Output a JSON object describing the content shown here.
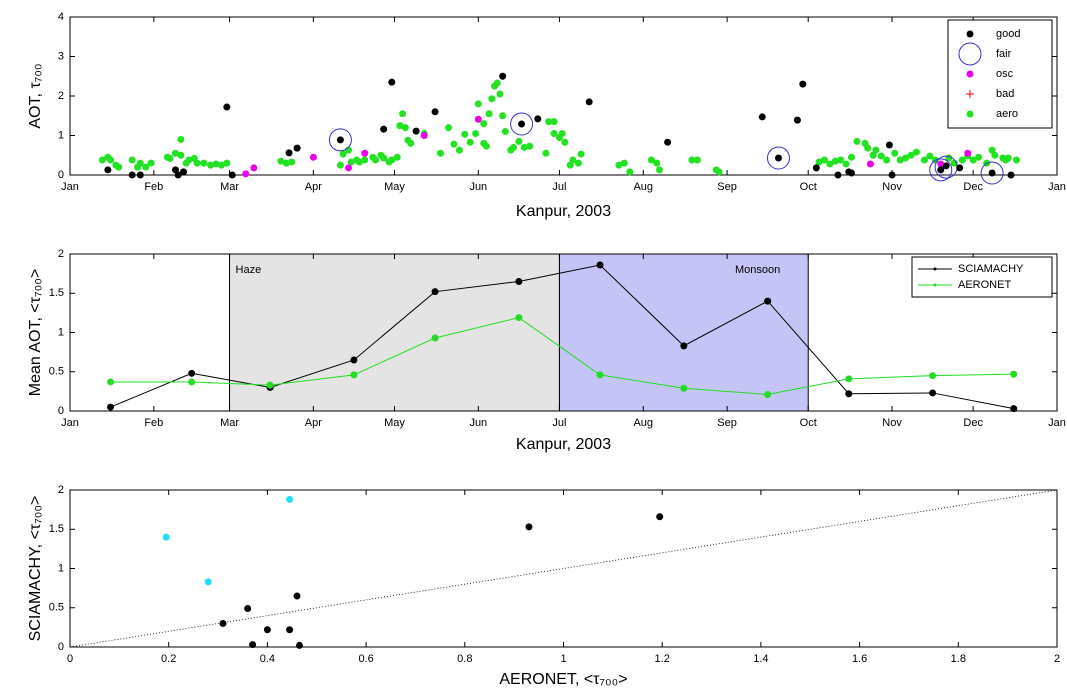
{
  "chart_data": [
    {
      "type": "scatter",
      "x_label": "Kanpur, 2003",
      "y_label": "AOT, τ₇₀₀",
      "xlim": [
        0,
        365
      ],
      "xticks": [
        {
          "value": 0,
          "label": "Jan"
        },
        {
          "value": 31,
          "label": "Feb"
        },
        {
          "value": 59,
          "label": "Mar"
        },
        {
          "value": 90,
          "label": "Apr"
        },
        {
          "value": 120,
          "label": "May"
        },
        {
          "value": 151,
          "label": "Jun"
        },
        {
          "value": 181,
          "label": "Jul"
        },
        {
          "value": 212,
          "label": "Aug"
        },
        {
          "value": 243,
          "label": "Sep"
        },
        {
          "value": 273,
          "label": "Oct"
        },
        {
          "value": 304,
          "label": "Nov"
        },
        {
          "value": 334,
          "label": "Dec"
        },
        {
          "value": 365,
          "label": "Jan"
        }
      ],
      "ylim": [
        0,
        4
      ],
      "yticks": [
        0,
        1,
        2,
        3,
        4
      ],
      "legend": "upper right",
      "series": [
        {
          "name": "good",
          "color": "#000000",
          "marker": "dot",
          "x": [
            14,
            23,
            26,
            39,
            40,
            42,
            58,
            60,
            81,
            84,
            100,
            116,
            119,
            128,
            135,
            160,
            167,
            173,
            192,
            221,
            256,
            262,
            269,
            271,
            276,
            284,
            288,
            289,
            303,
            304,
            322,
            324,
            329,
            341,
            348
          ],
          "values": [
            0.13,
            0,
            0,
            0.13,
            0,
            0.08,
            1.72,
            0,
            0.56,
            0.68,
            0.89,
            1.16,
            2.35,
            1.11,
            1.6,
            2.5,
            1.29,
            1.42,
            1.85,
            0.83,
            1.47,
            0.43,
            1.39,
            2.3,
            0.18,
            0,
            0.08,
            0.05,
            0.76,
            0,
            0.13,
            0.23,
            0.18,
            0.05,
            0
          ]
        },
        {
          "name": "fair",
          "color": "#3333cc",
          "marker": "circle",
          "x": [
            100,
            167,
            262,
            322,
            324,
            341
          ],
          "values": [
            0.89,
            1.29,
            0.43,
            0.13,
            0.2,
            0.05
          ]
        },
        {
          "name": "osc",
          "color": "#ee00ee",
          "marker": "dot",
          "x": [
            65,
            68,
            90,
            103,
            109,
            131,
            151,
            296,
            322,
            332
          ],
          "values": [
            0.03,
            0.18,
            0.45,
            0.18,
            0.55,
            1.0,
            1.41,
            0.28,
            0.28,
            0.55
          ]
        },
        {
          "name": "bad",
          "color": "#ff0000",
          "marker": "plus",
          "x": [],
          "values": []
        },
        {
          "name": "aero",
          "color": "#22e322",
          "marker": "dot",
          "x": [
            12,
            14,
            15,
            17,
            18,
            23,
            25,
            26,
            28,
            30,
            36,
            37,
            39,
            41,
            41,
            43,
            44,
            46,
            47,
            49.5,
            52,
            54,
            56,
            58,
            78,
            80,
            82,
            100,
            101,
            103,
            104,
            106,
            107,
            109,
            112,
            113,
            115,
            116,
            118,
            119,
            121,
            122,
            124,
            125,
            126,
            123,
            131,
            137,
            140,
            142,
            144,
            146,
            148,
            150,
            151,
            153,
            153,
            154,
            155,
            156,
            157,
            158,
            159,
            160,
            161,
            163,
            164,
            166,
            168,
            170,
            176,
            177,
            179,
            179,
            181,
            182,
            183,
            185,
            186,
            188,
            189,
            203,
            205,
            207,
            215,
            217,
            218,
            230,
            232,
            239,
            240,
            277,
            279,
            281,
            283,
            285,
            287,
            289,
            291,
            294,
            295,
            297,
            298,
            300,
            302,
            305,
            307,
            309,
            311,
            313,
            316,
            318,
            320,
            325,
            327,
            330,
            332,
            334,
            336,
            339,
            341,
            342,
            345,
            346,
            347,
            350
          ],
          "values": [
            0.38,
            0.45,
            0.38,
            0.25,
            0.2,
            0.38,
            0.2,
            0.3,
            0.2,
            0.3,
            0.45,
            0.42,
            0.55,
            0.9,
            0.5,
            0.3,
            0.38,
            0.42,
            0.3,
            0.3,
            0.25,
            0.28,
            0.25,
            0.3,
            0.35,
            0.3,
            0.33,
            0.25,
            0.53,
            0.63,
            0.33,
            0.38,
            0.33,
            0.38,
            0.45,
            0.38,
            0.5,
            0.43,
            0.33,
            0.38,
            0.45,
            1.25,
            1.2,
            0.88,
            0.8,
            1.55,
            1.05,
            0.55,
            1.2,
            0.78,
            0.63,
            1.03,
            0.83,
            1.05,
            1.8,
            1.3,
            0.8,
            0.73,
            1.55,
            1.93,
            2.25,
            2.33,
            2.05,
            1.5,
            1.1,
            0.63,
            0.7,
            0.85,
            0.7,
            0.73,
            0.55,
            1.35,
            1.35,
            1.05,
            0.95,
            1.05,
            0.83,
            0.25,
            0.38,
            0.3,
            0.53,
            0.25,
            0.3,
            0.08,
            0.38,
            0.3,
            0.13,
            0.38,
            0.38,
            0.13,
            0.08,
            0.33,
            0.38,
            0.28,
            0.35,
            0.38,
            0.28,
            0.45,
            0.85,
            0.8,
            0.68,
            0.5,
            0.63,
            0.48,
            0.38,
            0.55,
            0.38,
            0.43,
            0.5,
            0.58,
            0.38,
            0.48,
            0.38,
            0.43,
            0.3,
            0.38,
            0.48,
            0.38,
            0.45,
            0.3,
            0.63,
            0.5,
            0.43,
            0.38,
            0.43,
            0.38
          ]
        }
      ]
    },
    {
      "type": "line",
      "x_label": "Kanpur, 2003",
      "y_label": "Mean AOT, <τ₇₀₀>",
      "xlim": [
        0,
        365
      ],
      "xticks": [
        {
          "value": 0,
          "label": "Jan"
        },
        {
          "value": 31,
          "label": "Feb"
        },
        {
          "value": 59,
          "label": "Mar"
        },
        {
          "value": 90,
          "label": "Apr"
        },
        {
          "value": 120,
          "label": "May"
        },
        {
          "value": 151,
          "label": "Jun"
        },
        {
          "value": 181,
          "label": "Jul"
        },
        {
          "value": 212,
          "label": "Aug"
        },
        {
          "value": 243,
          "label": "Sep"
        },
        {
          "value": 273,
          "label": "Oct"
        },
        {
          "value": 304,
          "label": "Nov"
        },
        {
          "value": 334,
          "label": "Dec"
        },
        {
          "value": 365,
          "label": "Jan"
        }
      ],
      "ylim": [
        0,
        2
      ],
      "yticks": [
        0,
        0.5,
        1,
        1.5,
        2
      ],
      "legend": "upper right",
      "regions": [
        {
          "label": "Haze",
          "start": 59,
          "end": 181,
          "color": "#e4e4e4"
        },
        {
          "label": "Monsoon",
          "start": 181,
          "end": 273,
          "color": "#c4c4f6"
        }
      ],
      "x": [
        15,
        45,
        74,
        105,
        135,
        166,
        196,
        227,
        258,
        288,
        319,
        349
      ],
      "series": [
        {
          "name": "SCIAMACHY",
          "color": "#000000",
          "values": [
            0.05,
            0.48,
            0.3,
            0.65,
            1.52,
            1.65,
            1.86,
            0.83,
            1.4,
            0.22,
            0.23,
            0.03
          ]
        },
        {
          "name": "AERONET",
          "color": "#22dd22",
          "values": [
            0.37,
            0.37,
            0.33,
            0.46,
            0.93,
            1.19,
            0.46,
            0.29,
            0.21,
            0.41,
            0.45,
            0.47
          ]
        }
      ]
    },
    {
      "type": "scatter",
      "x_label": "AERONET, <τ₇₀₀>",
      "y_label": "SCIAMACHY, <τ₇₀₀>",
      "xlim": [
        0,
        2
      ],
      "xticks": [
        0,
        0.2,
        0.4,
        0.6,
        0.8,
        1,
        1.2,
        1.4,
        1.6,
        1.8,
        2
      ],
      "ylim": [
        0,
        2
      ],
      "yticks": [
        0,
        0.5,
        1,
        1.5,
        2
      ],
      "identity_line": true,
      "series": [
        {
          "color": "#000000",
          "marker": "dot",
          "x": [
            0.31,
            0.36,
            0.37,
            0.4,
            0.445,
            0.46,
            0.465,
            0.93,
            1.195
          ],
          "values": [
            0.3,
            0.49,
            0.03,
            0.22,
            0.22,
            0.65,
            0.02,
            1.53,
            1.66
          ]
        },
        {
          "color": "#22ddf5",
          "marker": "dot",
          "x": [
            0.195,
            0.28,
            0.445
          ],
          "values": [
            1.4,
            0.83,
            1.88
          ]
        }
      ]
    }
  ]
}
